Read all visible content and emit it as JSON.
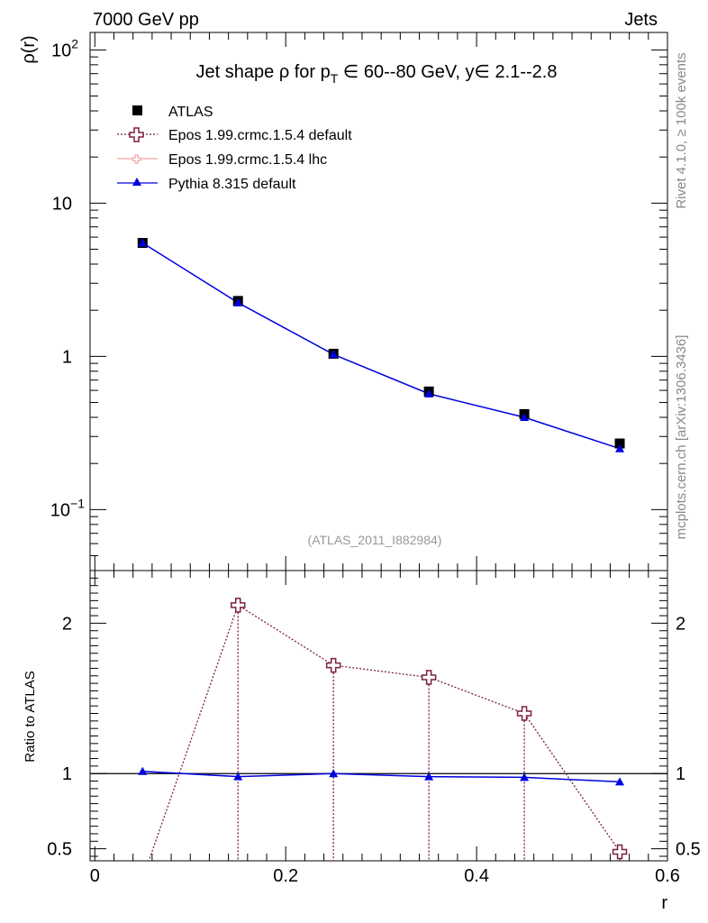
{
  "header": {
    "left": "7000 GeV pp",
    "right": "Jets"
  },
  "side_labels": {
    "rivet": "Rivet 4.1.0, ≥ 100k events",
    "source": "mcplots.cern.ch [arXiv:1306.3436]"
  },
  "colors": {
    "atlas": "#000000",
    "epos_default": "#7b1f3f",
    "epos_lhc": "#f4a3a3",
    "pythia": "#0000e0",
    "watermark": "#999999"
  },
  "chart_data": [
    {
      "id": "main",
      "type": "line",
      "scale": "log",
      "title_parts": {
        "pre": "Jet shape ρ for p",
        "sub": "T",
        "mid": " ∈ 60--80 GeV, y∈ 2.1--2.8"
      },
      "ylabel": "ρ(r)",
      "xlabel": "r",
      "xlim": [
        -0.005,
        0.6
      ],
      "ylim": [
        0.04,
        130
      ],
      "y_ticks": [
        {
          "value": 0.1,
          "label": "10",
          "sup": "−1"
        },
        {
          "value": 1,
          "label": "1",
          "sup": ""
        },
        {
          "value": 10,
          "label": "10",
          "sup": ""
        },
        {
          "value": 100,
          "label": "10",
          "sup": "2"
        }
      ],
      "watermark": "(ATLAS_2011_I882984)",
      "legend": {
        "position": "top-left",
        "entries": [
          {
            "label": "ATLAS",
            "style": "square"
          },
          {
            "label": "Epos 1.99.crmc.1.5.4 default",
            "style": "open-cross"
          },
          {
            "label": "Epos 1.99.crmc.1.5.4 lhc",
            "style": "small-cross"
          },
          {
            "label": "Pythia 8.315 default",
            "style": "triangle"
          }
        ]
      },
      "x": [
        0.05,
        0.15,
        0.25,
        0.35,
        0.45,
        0.55
      ],
      "series": [
        {
          "name": "ATLAS",
          "values": [
            5.5,
            2.3,
            1.04,
            0.59,
            0.42,
            0.27
          ]
        },
        {
          "name": "Pythia 8.315 default",
          "values": [
            5.5,
            2.24,
            1.03,
            0.57,
            0.4,
            0.25
          ]
        }
      ]
    },
    {
      "id": "ratio",
      "type": "line",
      "ylabel": "Ratio to ATLAS",
      "xlabel": "r",
      "xlim": [
        -0.005,
        0.6
      ],
      "ylim": [
        0.42,
        2.35
      ],
      "y_ticks": [
        {
          "value": 0.5,
          "label": "0.5"
        },
        {
          "value": 1,
          "label": "1"
        },
        {
          "value": 2,
          "label": "2"
        }
      ],
      "x_ticks": [
        {
          "value": 0,
          "label": "0"
        },
        {
          "value": 0.2,
          "label": "0.2"
        },
        {
          "value": 0.4,
          "label": "0.4"
        },
        {
          "value": 0.6,
          "label": "0.6"
        }
      ],
      "x": [
        0.05,
        0.15,
        0.25,
        0.35,
        0.45,
        0.55
      ],
      "series": [
        {
          "name": "Epos 1.99.crmc.1.5.4 default",
          "values": [
            0.3,
            2.12,
            1.72,
            1.64,
            1.4,
            0.48
          ],
          "lower_band": [
            0.3,
            0.3,
            0.3,
            0.3,
            0.3,
            0.3
          ]
        },
        {
          "name": "Pythia 8.315 default",
          "values": [
            1.015,
            0.98,
            1.0,
            0.98,
            0.975,
            0.945
          ]
        }
      ]
    }
  ]
}
